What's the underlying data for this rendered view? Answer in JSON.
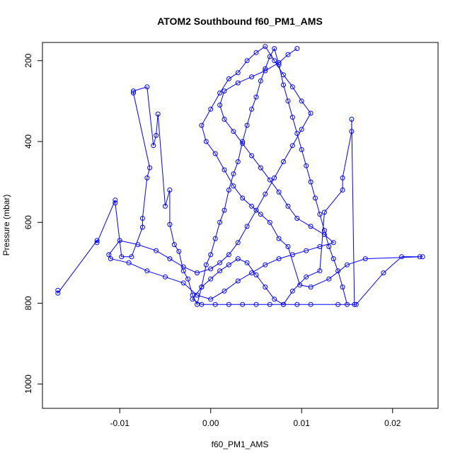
{
  "chart_data": {
    "type": "scatter",
    "title": "ATOM2 Southbound f60_PM1_AMS",
    "xlabel": "f60_PM1_AMS",
    "ylabel": "Pressure (mbar)",
    "xlim": [
      -0.0185,
      0.025
    ],
    "ylim": [
      1060,
      155
    ],
    "y_reversed": true,
    "x_ticks": [
      -0.01,
      0.0,
      0.01,
      0.02
    ],
    "x_tick_labels": [
      "-0.01",
      "0.00",
      "0.01",
      "0.02"
    ],
    "y_ticks": [
      200,
      400,
      600,
      800,
      1000
    ],
    "y_tick_labels": [
      "200",
      "400",
      "600",
      "800",
      "1000"
    ],
    "grid": false,
    "series": [
      {
        "color": "#0000ff",
        "marker": "open-circle",
        "line": true,
        "points": [
          [
            -0.0168,
            768
          ],
          [
            -0.0168,
            775
          ],
          [
            -0.0125,
            645
          ],
          [
            -0.0125,
            650
          ],
          [
            -0.0105,
            545
          ],
          [
            -0.0105,
            552
          ],
          [
            -0.0098,
            685
          ],
          [
            -0.0087,
            685
          ],
          [
            -0.0075,
            612
          ],
          [
            -0.0075,
            590
          ],
          [
            -0.007,
            490
          ],
          [
            -0.0067,
            465
          ],
          [
            -0.0085,
            280
          ],
          [
            -0.0085,
            275
          ],
          [
            -0.007,
            265
          ],
          [
            -0.0063,
            410
          ],
          [
            -0.006,
            385
          ],
          [
            -0.0058,
            332
          ],
          [
            -0.005,
            560
          ],
          [
            -0.0045,
            520
          ],
          [
            -0.0045,
            605
          ],
          [
            -0.004,
            655
          ],
          [
            -0.0035,
            672
          ],
          [
            -0.003,
            720
          ],
          [
            -0.0025,
            740
          ],
          [
            -0.002,
            780
          ],
          [
            -0.0015,
            803
          ],
          [
            -0.001,
            760
          ],
          [
            -0.0005,
            705
          ],
          [
            0.0,
            680
          ],
          [
            0.0005,
            640
          ],
          [
            0.001,
            600
          ],
          [
            0.0015,
            570
          ],
          [
            0.002,
            520
          ],
          [
            0.0025,
            480
          ],
          [
            0.003,
            450
          ],
          [
            0.0035,
            400
          ],
          [
            0.004,
            360
          ],
          [
            0.0045,
            320
          ],
          [
            0.005,
            290
          ],
          [
            0.0055,
            250
          ],
          [
            0.006,
            220
          ],
          [
            0.0065,
            190
          ],
          [
            0.007,
            170
          ],
          [
            0.0075,
            210
          ],
          [
            0.008,
            260
          ],
          [
            0.0085,
            300
          ],
          [
            0.009,
            340
          ],
          [
            0.0095,
            380
          ],
          [
            0.01,
            420
          ],
          [
            0.0105,
            460
          ],
          [
            0.011,
            500
          ],
          [
            0.0115,
            540
          ],
          [
            0.012,
            580
          ],
          [
            0.0125,
            620
          ],
          [
            0.013,
            660
          ],
          [
            0.0135,
            690
          ],
          [
            0.014,
            720
          ],
          [
            0.0145,
            760
          ],
          [
            0.015,
            803
          ],
          [
            0.0158,
            803
          ],
          [
            0.0155,
            345
          ],
          [
            0.0155,
            375
          ],
          [
            0.0145,
            490
          ],
          [
            0.0145,
            520
          ],
          [
            0.0125,
            575
          ],
          [
            0.012,
            720
          ],
          [
            0.0105,
            735
          ],
          [
            0.009,
            770
          ],
          [
            0.008,
            803
          ],
          [
            0.007,
            790
          ],
          [
            0.006,
            760
          ],
          [
            0.005,
            730
          ],
          [
            0.004,
            700
          ],
          [
            0.003,
            690
          ],
          [
            0.002,
            705
          ],
          [
            0.001,
            720
          ],
          [
            0.0,
            740
          ],
          [
            -0.001,
            760
          ],
          [
            -0.002,
            790
          ],
          [
            -0.001,
            803
          ],
          [
            0.0005,
            803
          ],
          [
            0.002,
            803
          ],
          [
            0.0035,
            803
          ],
          [
            0.005,
            803
          ],
          [
            0.0065,
            803
          ],
          [
            0.008,
            803
          ],
          [
            0.0095,
            803
          ],
          [
            0.011,
            803
          ],
          [
            0.014,
            803
          ],
          [
            0.016,
            803
          ],
          [
            0.019,
            725
          ],
          [
            0.021,
            685
          ],
          [
            0.023,
            685
          ],
          [
            0.0233,
            685
          ],
          [
            0.017,
            690
          ],
          [
            0.015,
            705
          ],
          [
            0.013,
            740
          ],
          [
            0.011,
            760
          ],
          [
            0.0098,
            755
          ],
          [
            0.0085,
            660
          ],
          [
            0.0075,
            640
          ],
          [
            0.0065,
            600
          ],
          [
            0.0055,
            580
          ],
          [
            0.0045,
            560
          ],
          [
            0.0035,
            540
          ],
          [
            0.0025,
            510
          ],
          [
            0.0015,
            470
          ],
          [
            0.0005,
            430
          ],
          [
            -0.0005,
            400
          ],
          [
            -0.001,
            360
          ],
          [
            0.0,
            320
          ],
          [
            0.001,
            280
          ],
          [
            0.002,
            245
          ],
          [
            0.003,
            230
          ],
          [
            0.004,
            200
          ],
          [
            0.005,
            180
          ],
          [
            0.006,
            165
          ],
          [
            0.007,
            200
          ],
          [
            0.008,
            235
          ],
          [
            0.009,
            265
          ],
          [
            0.01,
            300
          ],
          [
            0.011,
            330
          ],
          [
            0.01,
            370
          ],
          [
            0.009,
            410
          ],
          [
            0.008,
            450
          ],
          [
            0.007,
            490
          ],
          [
            0.006,
            530
          ],
          [
            0.005,
            570
          ],
          [
            0.004,
            610
          ],
          [
            0.003,
            650
          ],
          [
            0.002,
            680
          ],
          [
            0.001,
            700
          ],
          [
            0.0,
            715
          ],
          [
            -0.0015,
            725
          ],
          [
            -0.003,
            710
          ],
          [
            -0.0045,
            690
          ],
          [
            -0.006,
            670
          ],
          [
            -0.008,
            655
          ],
          [
            -0.01,
            645
          ],
          [
            -0.0112,
            680
          ],
          [
            -0.011,
            690
          ],
          [
            -0.009,
            700
          ],
          [
            -0.007,
            720
          ],
          [
            -0.005,
            735
          ],
          [
            -0.003,
            750
          ],
          [
            -0.0015,
            780
          ],
          [
            0.0,
            790
          ],
          [
            0.0015,
            770
          ],
          [
            0.003,
            745
          ],
          [
            0.0045,
            725
          ],
          [
            0.006,
            705
          ],
          [
            0.0075,
            690
          ],
          [
            0.009,
            680
          ],
          [
            0.0105,
            670
          ],
          [
            0.012,
            660
          ],
          [
            0.0135,
            650
          ],
          [
            0.0125,
            630
          ],
          [
            0.011,
            610
          ],
          [
            0.0095,
            590
          ],
          [
            0.0085,
            560
          ],
          [
            0.0075,
            525
          ],
          [
            0.0065,
            495
          ],
          [
            0.0055,
            465
          ],
          [
            0.0045,
            435
          ],
          [
            0.0035,
            405
          ],
          [
            0.0025,
            375
          ],
          [
            0.0015,
            345
          ],
          [
            0.001,
            310
          ],
          [
            0.0015,
            275
          ],
          [
            0.003,
            255
          ],
          [
            0.0045,
            240
          ],
          [
            0.006,
            225
          ],
          [
            0.0075,
            205
          ],
          [
            0.0085,
            185
          ],
          [
            0.0095,
            170
          ]
        ]
      }
    ]
  }
}
